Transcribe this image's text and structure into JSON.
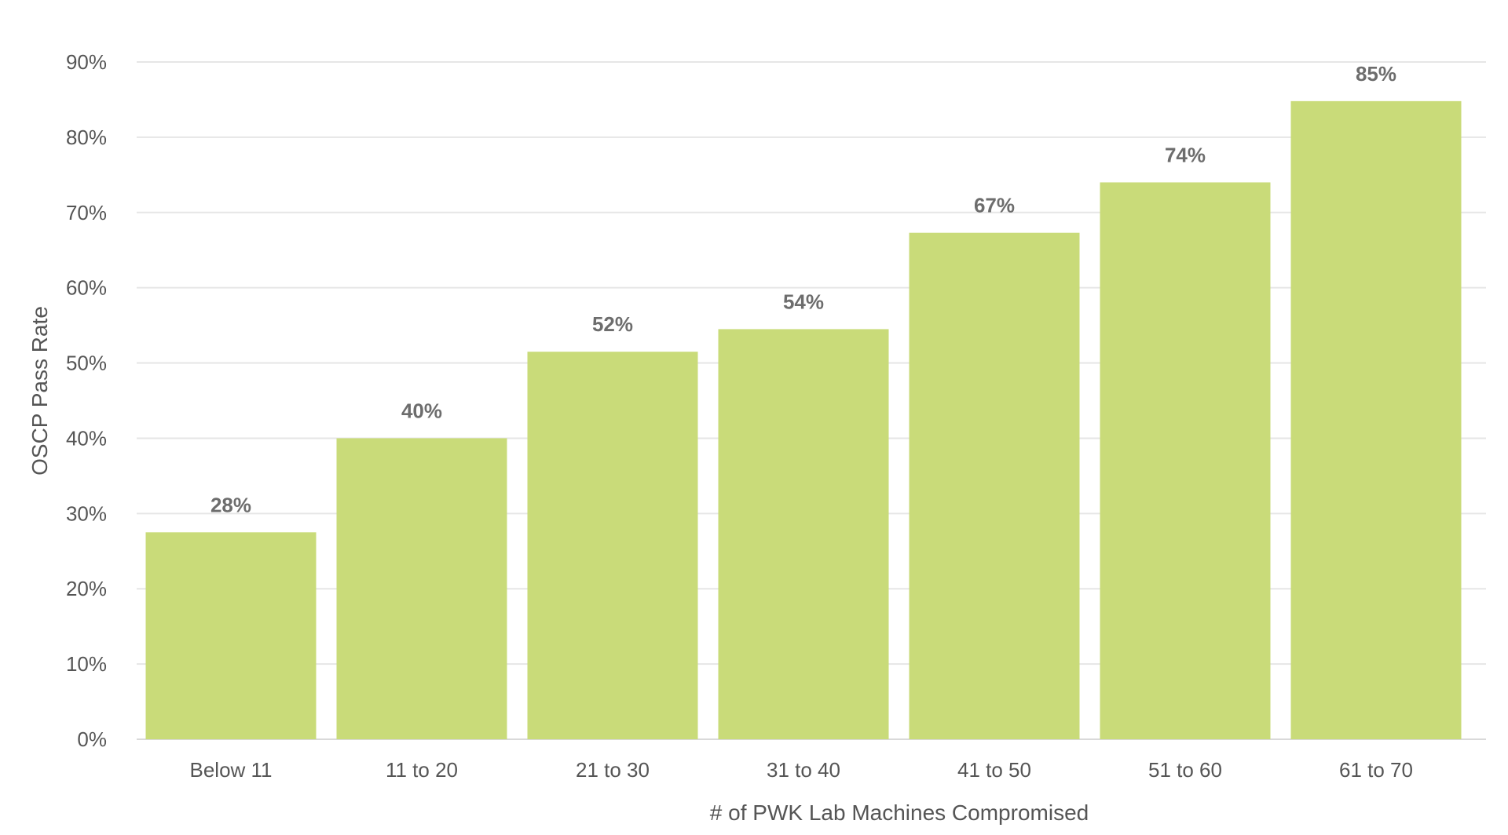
{
  "chart_data": {
    "type": "bar",
    "title": "",
    "xlabel": "# of PWK Lab Machines Compromised",
    "ylabel": "OSCP Pass Rate",
    "categories": [
      "Below 11",
      "11 to 20",
      "21 to 30",
      "31 to 40",
      "41 to 50",
      "51 to 60",
      "61 to 70"
    ],
    "values": [
      27.5,
      40,
      51.5,
      54.5,
      67.3,
      74,
      84.8
    ],
    "data_labels": [
      "28%",
      "40%",
      "52%",
      "54%",
      "67%",
      "74%",
      "85%"
    ],
    "y_ticks": [
      0,
      10,
      20,
      30,
      40,
      50,
      60,
      70,
      80,
      90
    ],
    "y_tick_labels": [
      "0%",
      "10%",
      "20%",
      "30%",
      "40%",
      "50%",
      "60%",
      "70%",
      "80%",
      "90%"
    ],
    "ylim": [
      0,
      90
    ],
    "grid": true,
    "legend": "none",
    "bar_color": "#c9db79"
  }
}
